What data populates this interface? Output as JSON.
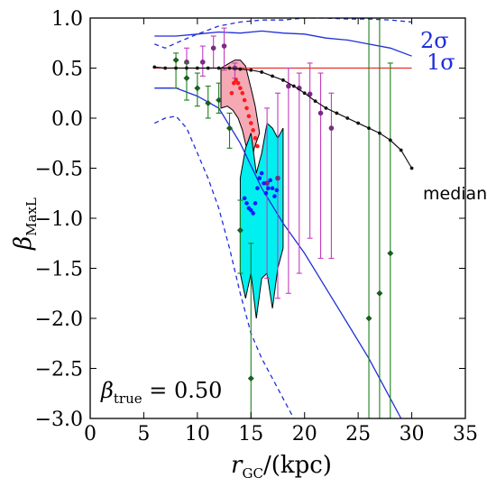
{
  "chart_data": {
    "type": "line",
    "xlabel": "r_GC/(kpc)",
    "xlabel_parts": {
      "base": "r",
      "sub": "GC",
      "tail": "/(kpc)"
    },
    "ylabel_parts": {
      "base": "β",
      "sub": "MaxL"
    },
    "xlim": [
      0,
      35
    ],
    "ylim": [
      -3.0,
      1.0
    ],
    "x_ticks": [
      0,
      5,
      10,
      15,
      20,
      25,
      30,
      35
    ],
    "x_tick_labels": [
      "0",
      "5",
      "10",
      "15",
      "20",
      "25",
      "30",
      "35"
    ],
    "y_ticks": [
      1.0,
      0.5,
      0.0,
      -0.5,
      -1.0,
      -1.5,
      -2.0,
      -2.5,
      -3.0
    ],
    "y_tick_labels": [
      "1.0",
      "0.5",
      "0.0",
      "−0.5",
      "−1.0",
      "−1.5",
      "−2.0",
      "−2.5",
      "−3.0"
    ],
    "annotations": {
      "beta_true": {
        "base": "β",
        "sub": "true",
        "tail": " = 0.50",
        "value": 0.5
      },
      "two_sigma": "2σ",
      "one_sigma": "1σ",
      "median": "median"
    },
    "colors": {
      "sigma": "#1f2fd8",
      "truth": "#e8302a",
      "median": "#111111",
      "magenta": "#c23dbd",
      "green": "#1e7f1e",
      "green_marker": "#1b5e20",
      "pink_band": "#f4a9b4",
      "cyan_band": "#00f0f0",
      "red_dots": "#ff1a1a",
      "blue_dots": "#1a1aff"
    },
    "truth_line": {
      "y": 0.5,
      "x": [
        6,
        30
      ]
    },
    "median": {
      "x": [
        6,
        7,
        8,
        9,
        10,
        11,
        12,
        13,
        14,
        15,
        16,
        17,
        18,
        19,
        20,
        21,
        22,
        23,
        24,
        25,
        26,
        27,
        28,
        29,
        30
      ],
      "y": [
        0.51,
        0.5,
        0.5,
        0.5,
        0.5,
        0.5,
        0.5,
        0.5,
        0.49,
        0.48,
        0.46,
        0.42,
        0.38,
        0.32,
        0.25,
        0.17,
        0.1,
        0.05,
        0.0,
        -0.05,
        -0.1,
        -0.15,
        -0.22,
        -0.32,
        -0.5
      ]
    },
    "sigma1_upper": {
      "x": [
        6,
        8,
        10,
        12,
        14,
        16,
        18,
        20,
        22,
        24,
        26,
        28,
        30
      ],
      "y": [
        0.82,
        0.82,
        0.84,
        0.86,
        0.85,
        0.87,
        0.85,
        0.84,
        0.8,
        0.78,
        0.74,
        0.7,
        0.62
      ]
    },
    "sigma1_lower": {
      "x": [
        6,
        8,
        10,
        12,
        14,
        16,
        18,
        20,
        22,
        24,
        26,
        28,
        29
      ],
      "y": [
        0.3,
        0.3,
        0.22,
        0.1,
        -0.25,
        -0.7,
        -1.05,
        -1.35,
        -1.7,
        -2.05,
        -2.4,
        -2.8,
        -3.0
      ]
    },
    "sigma2_upper": {
      "x": [
        6,
        7,
        8,
        10,
        12,
        14,
        16,
        18,
        20,
        22,
        24,
        26,
        28,
        30
      ],
      "y": [
        0.74,
        0.7,
        0.75,
        0.84,
        0.92,
        0.96,
        0.98,
        0.98,
        1.0,
        1.0,
        0.99,
        0.99,
        0.98,
        0.96
      ]
    },
    "sigma2_lower": {
      "x": [
        6,
        7,
        8,
        9,
        10,
        11,
        12,
        13,
        14,
        15,
        16,
        17,
        18,
        19
      ],
      "y": [
        -0.05,
        0.0,
        0.02,
        -0.1,
        -0.35,
        -0.6,
        -0.9,
        -1.3,
        -1.75,
        -2.15,
        -2.4,
        -2.6,
        -2.8,
        -3.0
      ]
    },
    "green_points": [
      {
        "x": 8.0,
        "y": 0.58,
        "lo": 0.3,
        "hi": 0.65
      },
      {
        "x": 9.0,
        "y": 0.4,
        "lo": 0.18,
        "hi": 0.55
      },
      {
        "x": 10.0,
        "y": 0.3,
        "lo": 0.12,
        "hi": 0.45
      },
      {
        "x": 11.0,
        "y": 0.15,
        "lo": 0.0,
        "hi": 0.32
      },
      {
        "x": 12.0,
        "y": 0.18,
        "lo": 0.05,
        "hi": 0.35
      },
      {
        "x": 13.0,
        "y": -0.1,
        "lo": -0.3,
        "hi": 0.05
      },
      {
        "x": 14.0,
        "y": -1.12,
        "lo": -1.55,
        "hi": -0.82
      },
      {
        "x": 15.0,
        "y": -2.6,
        "lo": -3.0,
        "hi": -1.25
      },
      {
        "x": 26.0,
        "y": -2.0,
        "lo": -3.0,
        "hi": 1.0
      },
      {
        "x": 27.0,
        "y": -1.75,
        "lo": -3.0,
        "hi": 1.0
      },
      {
        "x": 28.0,
        "y": -1.35,
        "lo": -3.0,
        "hi": 0.55
      }
    ],
    "magenta_points": [
      {
        "x": 9.0,
        "y": 0.56,
        "lo": 0.4,
        "hi": 0.7
      },
      {
        "x": 10.5,
        "y": 0.56,
        "lo": 0.42,
        "hi": 0.72
      },
      {
        "x": 11.5,
        "y": 0.7,
        "lo": 0.5,
        "hi": 0.82
      },
      {
        "x": 12.5,
        "y": 0.72,
        "lo": 0.48,
        "hi": 0.9
      },
      {
        "x": 13.5,
        "y": 0.5,
        "lo": 0.4,
        "hi": 0.55
      },
      {
        "x": 16.5,
        "y": -0.65,
        "lo": -1.6,
        "hi": 0.1
      },
      {
        "x": 17.5,
        "y": -0.6,
        "lo": -1.8,
        "hi": 0.25
      },
      {
        "x": 18.5,
        "y": 0.32,
        "lo": -1.75,
        "hi": 0.5
      },
      {
        "x": 19.5,
        "y": 0.3,
        "lo": -1.55,
        "hi": 0.45
      },
      {
        "x": 20.5,
        "y": 0.24,
        "lo": -1.2,
        "hi": 0.55
      },
      {
        "x": 21.5,
        "y": 0.05,
        "lo": -1.4,
        "hi": 0.45
      },
      {
        "x": 22.5,
        "y": -0.1,
        "lo": -1.4,
        "hi": 0.25
      }
    ],
    "pink_band": {
      "upper": [
        [
          12.2,
          0.5
        ],
        [
          13.0,
          0.55
        ],
        [
          13.5,
          0.58
        ],
        [
          14.0,
          0.58
        ],
        [
          14.5,
          0.52
        ],
        [
          15.0,
          0.3
        ],
        [
          15.4,
          0.12
        ],
        [
          15.8,
          -0.15
        ]
      ],
      "lower": [
        [
          15.8,
          -0.15
        ],
        [
          15.3,
          -0.3
        ],
        [
          15.0,
          -0.5
        ],
        [
          14.6,
          -0.3
        ],
        [
          14.2,
          -0.12
        ],
        [
          13.8,
          0.0
        ],
        [
          13.3,
          0.08
        ],
        [
          12.8,
          0.12
        ],
        [
          12.2,
          0.1
        ]
      ]
    },
    "cyan_band": {
      "upper": [
        [
          14.0,
          -0.6
        ],
        [
          14.5,
          -0.3
        ],
        [
          15.0,
          -0.15
        ],
        [
          15.5,
          -0.55
        ],
        [
          16.0,
          -0.35
        ],
        [
          16.5,
          -0.05
        ],
        [
          17.0,
          -0.1
        ],
        [
          17.5,
          -0.2
        ],
        [
          18.0,
          -0.1
        ]
      ],
      "lower": [
        [
          18.0,
          -1.3
        ],
        [
          17.5,
          -1.5
        ],
        [
          17.0,
          -1.9
        ],
        [
          16.5,
          -1.55
        ],
        [
          16.0,
          -1.6
        ],
        [
          15.5,
          -2.0
        ],
        [
          15.0,
          -1.55
        ],
        [
          14.5,
          -1.8
        ],
        [
          14.0,
          -1.55
        ]
      ]
    },
    "red_dots": {
      "x": [
        13.2,
        13.4,
        13.6,
        13.8,
        14.0,
        14.2,
        14.4,
        14.6,
        14.8,
        15.0,
        15.2,
        15.4,
        15.6
      ],
      "y": [
        0.25,
        0.35,
        0.38,
        0.35,
        0.3,
        0.25,
        0.18,
        0.1,
        0.02,
        -0.05,
        -0.12,
        -0.2,
        -0.28
      ]
    },
    "blue_dots": {
      "x": [
        14.4,
        14.6,
        14.8,
        15.0,
        15.2,
        15.4,
        15.6,
        15.8,
        16.0,
        16.2,
        16.4,
        16.6,
        16.8,
        17.0,
        17.2,
        17.4
      ],
      "y": [
        -0.8,
        -0.85,
        -0.9,
        -0.92,
        -0.95,
        -0.85,
        -0.7,
        -0.6,
        -0.55,
        -0.65,
        -0.75,
        -0.7,
        -0.62,
        -0.7,
        -0.78,
        -0.72
      ]
    }
  }
}
